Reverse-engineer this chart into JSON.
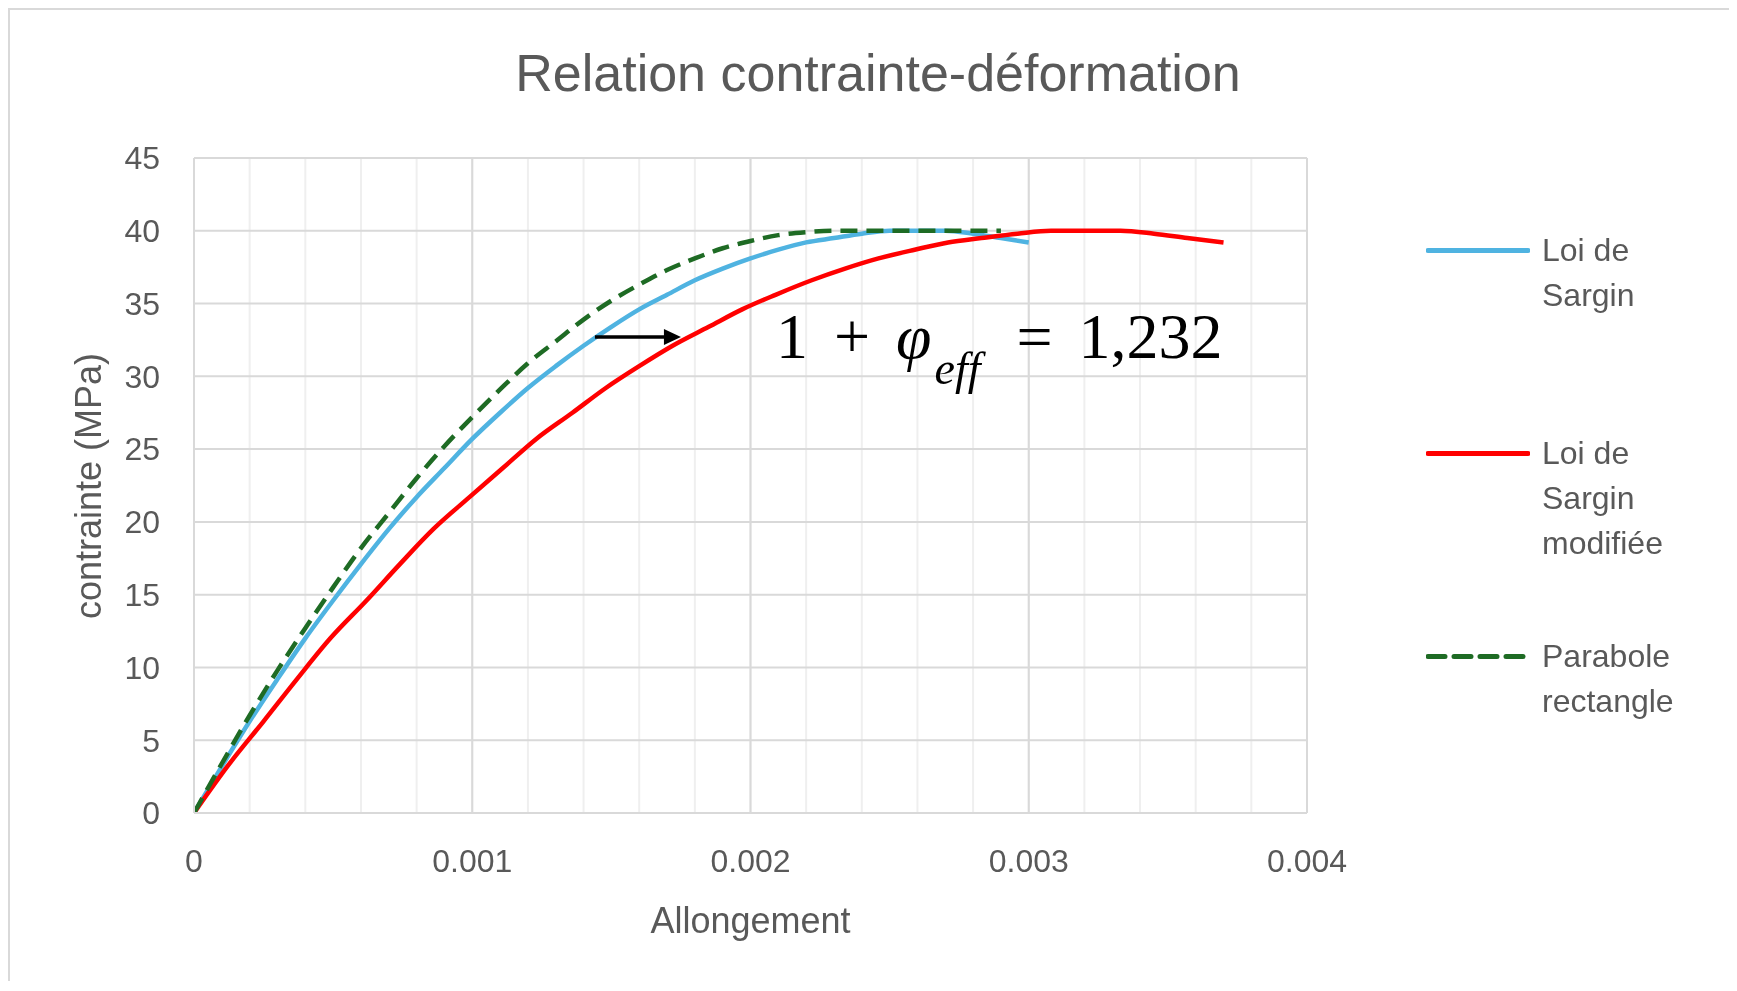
{
  "chart_data": {
    "type": "line",
    "title": "Relation contrainte-déformation",
    "xlabel": "Allongement",
    "ylabel": "contrainte (MPa)",
    "xlim": [
      0,
      0.004
    ],
    "xticks": [
      0,
      {
        "value": 0.0002,
        "label": null
      },
      {
        "value": 0.0004,
        "label": null
      },
      {
        "value": 0.0006,
        "label": null
      },
      {
        "value": 0.0008,
        "label": null
      },
      0.001,
      {
        "value": 0.0012,
        "label": null
      },
      {
        "value": 0.0014,
        "label": null
      },
      {
        "value": 0.0016,
        "label": null
      },
      {
        "value": 0.0018,
        "label": null
      },
      0.002,
      {
        "value": 0.0022,
        "label": null
      },
      {
        "value": 0.0024,
        "label": null
      },
      {
        "value": 0.0026,
        "label": null
      },
      {
        "value": 0.0028,
        "label": null
      },
      0.003,
      {
        "value": 0.0032,
        "label": null
      },
      {
        "value": 0.0034,
        "label": null
      },
      {
        "value": 0.0036,
        "label": null
      },
      {
        "value": 0.0038,
        "label": null
      },
      0.004
    ],
    "ylim": [
      0,
      45
    ],
    "yticks": [
      0,
      5,
      10,
      15,
      20,
      25,
      30,
      35,
      40,
      45
    ],
    "grid": true,
    "legend": "right",
    "annotations": [
      {
        "text": "1 + φ$_{eff}$ = 1,232",
        "x": 0.00175,
        "y": 32.7
      }
    ],
    "series": [
      {
        "name": "Loi de Sargin",
        "color": "#4fb3e1",
        "x": [
          0,
          0.0001,
          0.0002,
          0.0003,
          0.0004,
          0.0005,
          0.0006,
          0.0007,
          0.0008,
          0.0009,
          0.001,
          0.0011,
          0.0012,
          0.0013,
          0.0014,
          0.0015,
          0.0016,
          0.0017,
          0.0018,
          0.0019,
          0.002,
          0.0021,
          0.0022,
          0.0023,
          0.0024,
          0.0025,
          0.0026,
          0.0027,
          0.0028,
          0.0029,
          0.003
        ],
        "values": [
          0,
          3.2,
          6.3,
          9.2,
          12.0,
          14.6,
          17.1,
          19.5,
          21.7,
          23.7,
          25.7,
          27.5,
          29.2,
          30.7,
          32.1,
          33.4,
          34.6,
          35.6,
          36.6,
          37.4,
          38.1,
          38.7,
          39.2,
          39.5,
          39.8,
          40.0,
          40,
          40.0,
          39.8,
          39.5,
          39.2
        ]
      },
      {
        "name": "Loi de Sargin modifiée",
        "color": "#ff0000",
        "x": [
          0,
          0.00012,
          0.00025,
          0.00037,
          0.00049,
          0.00062,
          0.00074,
          0.00086,
          0.00099,
          0.00111,
          0.00123,
          0.00136,
          0.00148,
          0.0016,
          0.00172,
          0.00185,
          0.00197,
          0.00209,
          0.00222,
          0.00234,
          0.00246,
          0.00259,
          0.00271,
          0.00283,
          0.00296,
          0.00308,
          0.0032,
          0.00333,
          0.00345,
          0.00357,
          0.0037
        ],
        "values": [
          0,
          3.2,
          6.3,
          9.2,
          12.0,
          14.6,
          17.1,
          19.5,
          21.7,
          23.7,
          25.7,
          27.5,
          29.2,
          30.7,
          32.1,
          33.4,
          34.6,
          35.6,
          36.6,
          37.4,
          38.1,
          38.7,
          39.2,
          39.5,
          39.8,
          40.0,
          40,
          40.0,
          39.8,
          39.5,
          39.2
        ]
      },
      {
        "name": "Parabole rectangle",
        "color": "#1e6b24",
        "line_style": "dashed",
        "x": [
          0,
          0.0001,
          0.0002,
          0.0003,
          0.0004,
          0.0005,
          0.0006,
          0.0007,
          0.0008,
          0.0009,
          0.001,
          0.0011,
          0.0012,
          0.0013,
          0.0014,
          0.0015,
          0.0016,
          0.0017,
          0.0018,
          0.0019,
          0.002,
          0.0021,
          0.0022,
          0.0023,
          0.0024,
          0.0025,
          0.0026,
          0.0027,
          0.0028,
          0.0029
        ],
        "values": [
          0,
          3.4,
          6.7,
          9.8,
          12.7,
          15.5,
          18.2,
          20.6,
          23.0,
          25.2,
          27.2,
          29.1,
          30.9,
          32.4,
          33.9,
          35.2,
          36.3,
          37.3,
          38.1,
          38.8,
          39.3,
          39.7,
          39.9,
          40,
          40,
          40,
          40,
          40,
          40,
          40
        ]
      }
    ]
  }
}
